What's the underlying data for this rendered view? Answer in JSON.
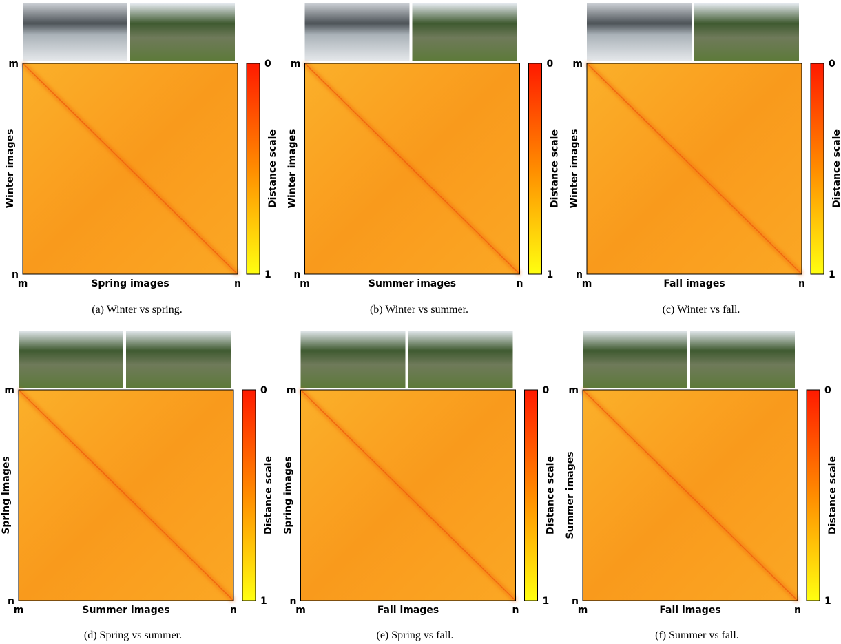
{
  "panels": [
    {
      "caption": "(a) Winter vs spring.",
      "x_label": "Spring images",
      "y_label": "Winter images",
      "colorbar_label": "Distance scale",
      "x_ticks": [
        "m",
        "n"
      ],
      "y_ticks": [
        "m",
        "n"
      ],
      "colorbar_ticks": [
        "0",
        "1"
      ]
    },
    {
      "caption": "(b) Winter vs summer.",
      "x_label": "Summer images",
      "y_label": "Winter images",
      "colorbar_label": "Distance scale",
      "x_ticks": [
        "m",
        "n"
      ],
      "y_ticks": [
        "m",
        "n"
      ],
      "colorbar_ticks": [
        "0",
        "1"
      ]
    },
    {
      "caption": "(c) Winter vs fall.",
      "x_label": "Fall images",
      "y_label": "Winter images",
      "colorbar_label": "Distance scale",
      "x_ticks": [
        "m",
        "n"
      ],
      "y_ticks": [
        "m",
        "n"
      ],
      "colorbar_ticks": [
        "0",
        "1"
      ]
    },
    {
      "caption": "(d) Spring vs summer.",
      "x_label": "Summer images",
      "y_label": "Spring images",
      "colorbar_label": "Distance scale",
      "x_ticks": [
        "m",
        "n"
      ],
      "y_ticks": [
        "m",
        "n"
      ],
      "colorbar_ticks": [
        "0",
        "1"
      ]
    },
    {
      "caption": "(e) Spring vs fall.",
      "x_label": "Fall images",
      "y_label": "Spring images",
      "colorbar_label": "Distance scale",
      "x_ticks": [
        "m",
        "n"
      ],
      "y_ticks": [
        "m",
        "n"
      ],
      "colorbar_ticks": [
        "0",
        "1"
      ]
    },
    {
      "caption": "(f) Summer vs fall.",
      "x_label": "Fall images",
      "y_label": "Summer images",
      "colorbar_label": "Distance scale",
      "x_ticks": [
        "m",
        "n"
      ],
      "y_ticks": [
        "m",
        "n"
      ],
      "colorbar_ticks": [
        "0",
        "1"
      ]
    }
  ]
}
